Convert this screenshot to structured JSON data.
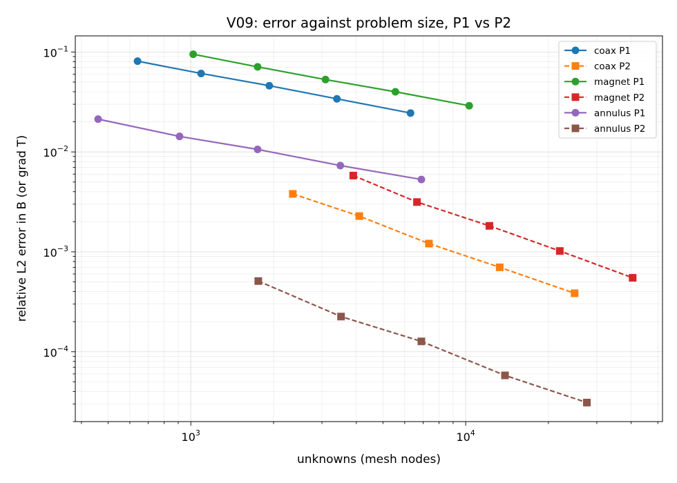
{
  "chart_data": {
    "type": "line",
    "title": "V09: error against problem size, P1 vs P2",
    "xlabel": "unknowns (mesh nodes)",
    "ylabel": "relative L2 error in B (or grad T)",
    "x_scale": "log",
    "y_scale": "log",
    "xlim": [
      380,
      52000
    ],
    "ylim": [
      2e-05,
      0.145
    ],
    "x_ticks": [
      {
        "value": 1000,
        "base": "10",
        "exp": "3"
      },
      {
        "value": 10000,
        "base": "10",
        "exp": "4"
      }
    ],
    "y_ticks": [
      {
        "value": 0.0001,
        "base": "10",
        "exp": "−4"
      },
      {
        "value": 0.001,
        "base": "10",
        "exp": "−3"
      },
      {
        "value": 0.01,
        "base": "10",
        "exp": "−2"
      },
      {
        "value": 0.1,
        "base": "10",
        "exp": "−1"
      }
    ],
    "grid": "both (major and minor)",
    "legend_position": "top-right",
    "series": [
      {
        "name": "coax P1",
        "color": "#1f77b4",
        "marker": "circle",
        "dash": "solid",
        "x": [
          640,
          1090,
          1930,
          3400,
          6300
        ],
        "y": [
          0.081,
          0.061,
          0.046,
          0.034,
          0.0245
        ]
      },
      {
        "name": "coax P2",
        "color": "#ff7f0e",
        "marker": "square",
        "dash": "dashed",
        "x": [
          2350,
          4100,
          7350,
          13300,
          24900
        ],
        "y": [
          0.0038,
          0.00228,
          0.00121,
          0.0007,
          0.000385
        ]
      },
      {
        "name": "magnet P1",
        "color": "#2ca02c",
        "marker": "circle",
        "dash": "solid",
        "x": [
          1020,
          1750,
          3090,
          5550,
          10300
        ],
        "y": [
          0.095,
          0.071,
          0.053,
          0.04,
          0.029
        ]
      },
      {
        "name": "magnet P2",
        "color": "#d62728",
        "marker": "square",
        "dash": "dashed",
        "x": [
          3900,
          6650,
          12200,
          22000,
          40500
        ],
        "y": [
          0.0058,
          0.00315,
          0.00182,
          0.00102,
          0.00055
        ]
      },
      {
        "name": "annulus P1",
        "color": "#9467bd",
        "marker": "circle",
        "dash": "solid",
        "x": [
          460,
          910,
          1750,
          3500,
          6900
        ],
        "y": [
          0.0213,
          0.0143,
          0.0106,
          0.0073,
          0.0053
        ]
      },
      {
        "name": "annulus P2",
        "color": "#8c564b",
        "marker": "square",
        "dash": "dashed",
        "x": [
          1760,
          3520,
          6900,
          13900,
          27600
        ],
        "y": [
          0.00051,
          0.000225,
          0.000127,
          5.8e-05,
          3.1e-05
        ]
      }
    ]
  }
}
